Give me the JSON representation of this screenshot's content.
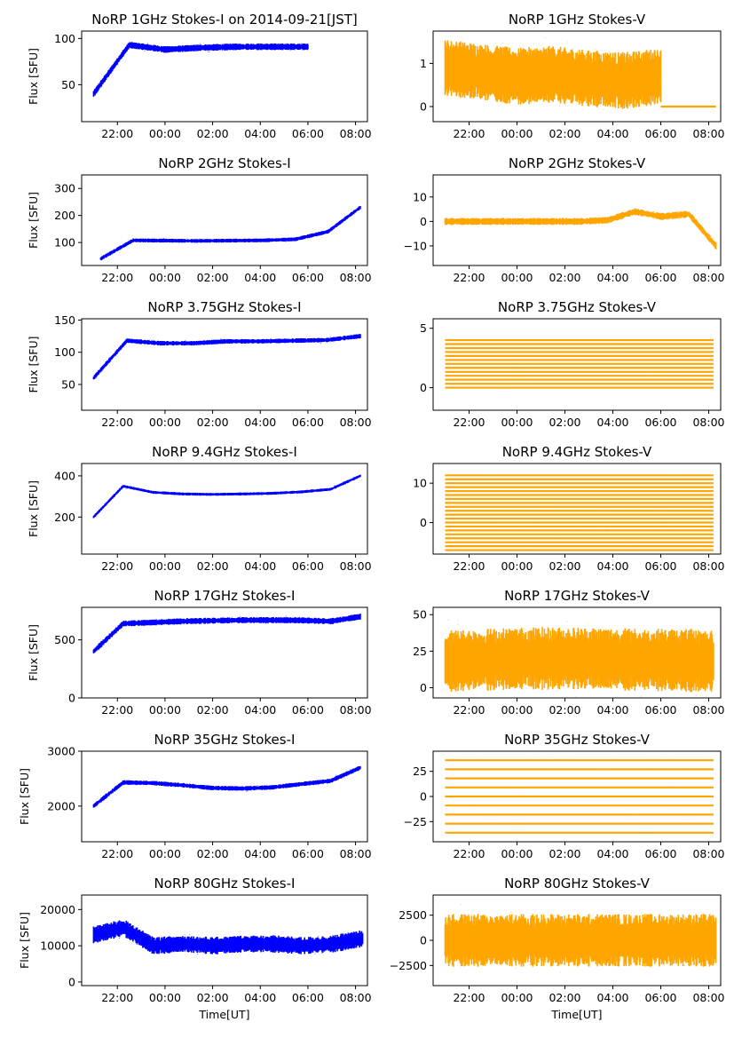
{
  "figure": {
    "colors": {
      "stokes_i": "#0000ff",
      "stokes_v": "#ffa500",
      "axes": "#000000"
    },
    "x_axis_label": "Time[UT]",
    "y_axis_label": "Flux [SFU]"
  },
  "chart_data": [
    {
      "id": "i1",
      "type": "scatter",
      "title": "NoRP 1GHz Stokes-I on 2014-09-21[JST]",
      "ylabel": "Flux [SFU]",
      "xlabel": "",
      "xticks": [
        "22:00",
        "00:00",
        "02:00",
        "04:00",
        "06:00",
        "08:00"
      ],
      "xlim": [
        20.5,
        32.5
      ],
      "ylim": [
        10,
        108
      ],
      "yticks": [
        50,
        100
      ],
      "yticklabels": [
        "50",
        "100"
      ],
      "series": [
        {
          "name": "Stokes-I",
          "t_range": [
            21.0,
            30.0
          ],
          "level_start": 40,
          "level_end": 91,
          "profile": [
            40,
            93,
            88,
            90,
            91,
            91,
            91
          ],
          "spread": 3
        }
      ]
    },
    {
      "id": "v1",
      "type": "scatter",
      "title": "NoRP 1GHz Stokes-V",
      "ylabel": "",
      "xlabel": "",
      "xticks": [
        "22:00",
        "00:00",
        "02:00",
        "04:00",
        "06:00",
        "08:00"
      ],
      "xlim": [
        20.5,
        32.5
      ],
      "ylim": [
        -0.35,
        1.75
      ],
      "yticks": [
        0,
        1
      ],
      "yticklabels": [
        "0",
        "1"
      ],
      "series": [
        {
          "name": "Stokes-V",
          "t_range": [
            21.0,
            30.0
          ],
          "profile": [
            0.9,
            0.8,
            0.7,
            0.75,
            0.65,
            0.6,
            0.7
          ],
          "spread": 0.55,
          "baseline": 0,
          "baseline_t_range": [
            30.0,
            32.3
          ]
        }
      ]
    },
    {
      "id": "i2",
      "type": "scatter",
      "title": "NoRP 2GHz Stokes-I",
      "ylabel": "Flux [SFU]",
      "xlabel": "",
      "xticks": [
        "22:00",
        "00:00",
        "02:00",
        "04:00",
        "06:00",
        "08:00"
      ],
      "xlim": [
        20.5,
        32.5
      ],
      "ylim": [
        15,
        350
      ],
      "yticks": [
        100,
        200,
        300
      ],
      "yticklabels": [
        "100",
        "200",
        "300"
      ],
      "series": [
        {
          "name": "Stokes-I",
          "t_range": [
            21.3,
            32.2
          ],
          "profile": [
            40,
            108,
            107,
            106,
            107,
            108,
            112,
            140,
            230
          ],
          "spread": 6
        }
      ]
    },
    {
      "id": "v2",
      "type": "scatter",
      "title": "NoRP 2GHz Stokes-V",
      "ylabel": "",
      "xlabel": "",
      "xticks": [
        "22:00",
        "00:00",
        "02:00",
        "04:00",
        "06:00",
        "08:00"
      ],
      "xlim": [
        20.5,
        32.5
      ],
      "ylim": [
        -18,
        19
      ],
      "yticks": [
        -10,
        0,
        10
      ],
      "yticklabels": [
        "−10",
        "0",
        "10"
      ],
      "series": [
        {
          "name": "Stokes-V",
          "t_range": [
            21.0,
            32.3
          ],
          "profile": [
            0,
            0,
            0,
            0,
            0,
            0,
            0.5,
            4,
            2,
            3,
            -10
          ],
          "spread": 1.2
        }
      ]
    },
    {
      "id": "i3",
      "type": "scatter",
      "title": "NoRP 3.75GHz Stokes-I",
      "ylabel": "Flux [SFU]",
      "xlabel": "",
      "xticks": [
        "22:00",
        "00:00",
        "02:00",
        "04:00",
        "06:00",
        "08:00"
      ],
      "xlim": [
        20.5,
        32.5
      ],
      "ylim": [
        10,
        152
      ],
      "yticks": [
        50,
        100,
        150
      ],
      "yticklabels": [
        "50",
        "100",
        "150"
      ],
      "series": [
        {
          "name": "Stokes-I",
          "t_range": [
            21.0,
            32.2
          ],
          "profile": [
            60,
            118,
            114,
            114,
            117,
            117,
            118,
            119,
            125
          ],
          "spread": 3
        }
      ]
    },
    {
      "id": "v3",
      "type": "scatter",
      "title": "NoRP 3.75GHz Stokes-V",
      "ylabel": "",
      "xlabel": "",
      "xticks": [
        "22:00",
        "00:00",
        "02:00",
        "04:00",
        "06:00",
        "08:00"
      ],
      "xlim": [
        20.5,
        32.5
      ],
      "ylim": [
        -1.9,
        5.8
      ],
      "yticks": [
        0,
        5
      ],
      "yticklabels": [
        "0",
        "5"
      ],
      "series": [
        {
          "name": "Stokes-V",
          "t_range": [
            21.0,
            32.2
          ],
          "quantized_levels": [
            0,
            0.33,
            0.67,
            1.0,
            1.33,
            1.67,
            2.0,
            2.33,
            2.67,
            3.0,
            3.33,
            3.67,
            4.0
          ]
        }
      ]
    },
    {
      "id": "i4",
      "type": "scatter",
      "title": "NoRP 9.4GHz Stokes-I",
      "ylabel": "Flux [SFU]",
      "xlabel": "",
      "xticks": [
        "22:00",
        "00:00",
        "02:00",
        "04:00",
        "06:00",
        "08:00"
      ],
      "xlim": [
        20.5,
        32.5
      ],
      "ylim": [
        20,
        460
      ],
      "yticks": [
        200,
        400
      ],
      "yticklabels": [
        "200",
        "400"
      ],
      "series": [
        {
          "name": "Stokes-I",
          "t_range": [
            21.0,
            32.2
          ],
          "profile": [
            200,
            350,
            320,
            312,
            310,
            312,
            315,
            322,
            335,
            400
          ],
          "spread": 6
        }
      ]
    },
    {
      "id": "v4",
      "type": "scatter",
      "title": "NoRP 9.4GHz Stokes-V",
      "ylabel": "",
      "xlabel": "",
      "xticks": [
        "22:00",
        "00:00",
        "02:00",
        "04:00",
        "06:00",
        "08:00"
      ],
      "xlim": [
        20.5,
        32.5
      ],
      "ylim": [
        -8,
        15
      ],
      "yticks": [
        0,
        10
      ],
      "yticklabels": [
        "0",
        "10"
      ],
      "series": [
        {
          "name": "Stokes-V",
          "t_range": [
            21.0,
            32.2
          ],
          "quantized_levels": [
            -7,
            -6,
            -5,
            -4,
            -3,
            -2,
            -1,
            0,
            1,
            2,
            3,
            4,
            5,
            6,
            7,
            8,
            9,
            10,
            11,
            12
          ]
        }
      ]
    },
    {
      "id": "i5",
      "type": "scatter",
      "title": "NoRP 17GHz Stokes-I",
      "ylabel": "Flux [SFU]",
      "xlabel": "",
      "xticks": [
        "22:00",
        "00:00",
        "02:00",
        "04:00",
        "06:00",
        "08:00"
      ],
      "xlim": [
        20.5,
        32.5
      ],
      "ylim": [
        0,
        780
      ],
      "yticks": [
        0,
        500
      ],
      "yticklabels": [
        "0",
        "500"
      ],
      "series": [
        {
          "name": "Stokes-I",
          "t_range": [
            21.0,
            32.2
          ],
          "profile": [
            400,
            640,
            650,
            660,
            665,
            670,
            670,
            668,
            660,
            700
          ],
          "spread": 22
        }
      ]
    },
    {
      "id": "v5",
      "type": "scatter",
      "title": "NoRP 17GHz Stokes-V",
      "ylabel": "",
      "xlabel": "",
      "xticks": [
        "22:00",
        "00:00",
        "02:00",
        "04:00",
        "06:00",
        "08:00"
      ],
      "xlim": [
        20.5,
        32.5
      ],
      "ylim": [
        -7,
        55
      ],
      "yticks": [
        0,
        25,
        50
      ],
      "yticklabels": [
        "0",
        "25",
        "50"
      ],
      "series": [
        {
          "name": "Stokes-V",
          "t_range": [
            21.0,
            32.2
          ],
          "profile": [
            18,
            19,
            20,
            20,
            20,
            19,
            19,
            18
          ],
          "spread": 18
        }
      ]
    },
    {
      "id": "i6",
      "type": "scatter",
      "title": "NoRP 35GHz Stokes-I",
      "ylabel": "Flux [SFU]",
      "xlabel": "",
      "xticks": [
        "22:00",
        "00:00",
        "02:00",
        "04:00",
        "06:00",
        "08:00"
      ],
      "xlim": [
        20.5,
        32.5
      ],
      "ylim": [
        1350,
        3000
      ],
      "yticks": [
        2000,
        3000
      ],
      "yticklabels": [
        "2000",
        "3000"
      ],
      "series": [
        {
          "name": "Stokes-I",
          "t_range": [
            21.0,
            32.2
          ],
          "profile": [
            2000,
            2430,
            2420,
            2380,
            2330,
            2320,
            2340,
            2400,
            2460,
            2700
          ],
          "spread": 35
        }
      ]
    },
    {
      "id": "v6",
      "type": "scatter",
      "title": "NoRP 35GHz Stokes-V",
      "ylabel": "",
      "xlabel": "",
      "xticks": [
        "22:00",
        "00:00",
        "02:00",
        "04:00",
        "06:00",
        "08:00"
      ],
      "xlim": [
        20.5,
        32.5
      ],
      "ylim": [
        -45,
        45
      ],
      "yticks": [
        -25,
        0,
        25
      ],
      "yticklabels": [
        "−25",
        "0",
        "25"
      ],
      "series": [
        {
          "name": "Stokes-V",
          "t_range": [
            21.0,
            32.2
          ],
          "quantized_levels": [
            -36,
            -27,
            -18,
            -9,
            0,
            9,
            18,
            27,
            36
          ]
        }
      ]
    },
    {
      "id": "i7",
      "type": "scatter",
      "title": "NoRP 80GHz Stokes-I",
      "ylabel": "Flux [SFU]",
      "xlabel": "Time[UT]",
      "xticks": [
        "22:00",
        "00:00",
        "02:00",
        "04:00",
        "06:00",
        "08:00"
      ],
      "xlim": [
        20.5,
        32.5
      ],
      "ylim": [
        -1000,
        24000
      ],
      "yticks": [
        0,
        10000,
        20000
      ],
      "yticklabels": [
        "0",
        "10000",
        "20000"
      ],
      "series": [
        {
          "name": "Stokes-I",
          "t_range": [
            21.0,
            32.3
          ],
          "profile": [
            13000,
            15000,
            10000,
            10500,
            10000,
            10500,
            10500,
            10000,
            10500,
            12000
          ],
          "spread": 2000
        }
      ]
    },
    {
      "id": "v7",
      "type": "scatter",
      "title": "NoRP 80GHz Stokes-V",
      "ylabel": "",
      "xlabel": "Time[UT]",
      "xticks": [
        "22:00",
        "00:00",
        "02:00",
        "04:00",
        "06:00",
        "08:00"
      ],
      "xlim": [
        20.5,
        32.5
      ],
      "ylim": [
        -4500,
        4500
      ],
      "yticks": [
        -2500,
        0,
        2500
      ],
      "yticklabels": [
        "−2500",
        "0",
        "2500"
      ],
      "series": [
        {
          "name": "Stokes-V",
          "t_range": [
            21.0,
            32.3
          ],
          "profile": [
            0,
            0,
            0,
            0,
            0,
            0
          ],
          "spread": 2200
        }
      ]
    }
  ]
}
